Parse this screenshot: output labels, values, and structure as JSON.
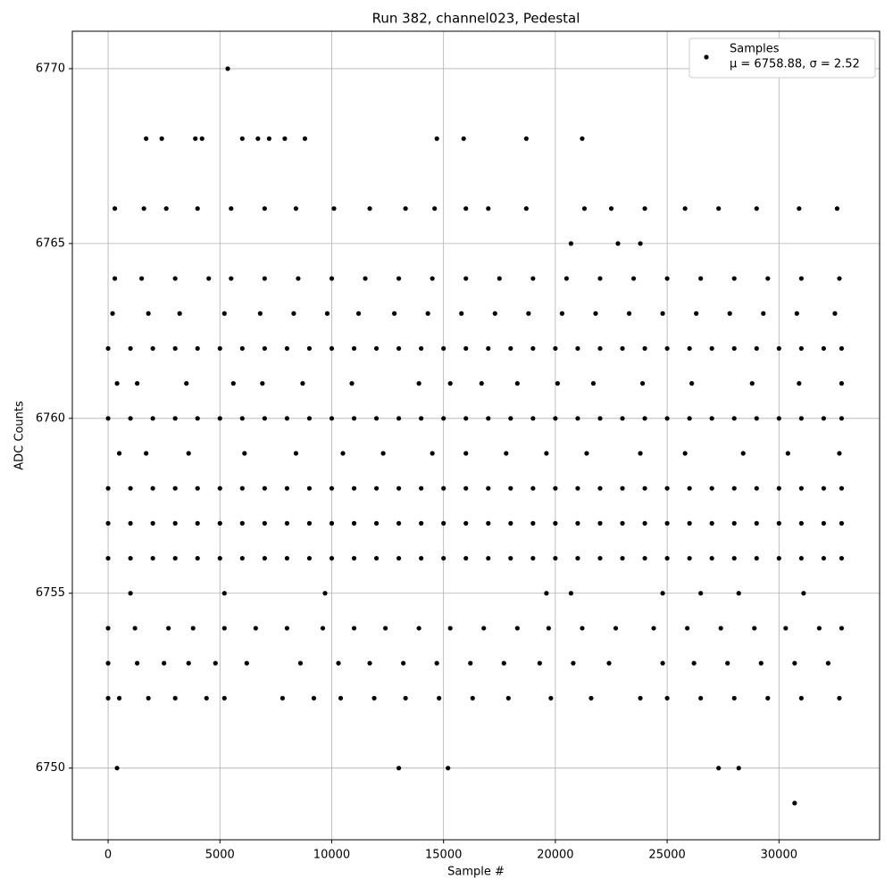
{
  "chart_data": {
    "type": "scatter",
    "title": "Run 382, channel023, Pedestal",
    "xlabel": "Sample #",
    "ylabel": "ADC Counts",
    "xlim": [
      -1600,
      34500
    ],
    "ylim": [
      6747.95,
      6771.07
    ],
    "xticks": [
      0,
      5000,
      10000,
      15000,
      20000,
      25000,
      30000
    ],
    "yticks": [
      6750,
      6755,
      6760,
      6765,
      6770
    ],
    "grid": true,
    "legend": "upper right",
    "legend_subtitle": "μ = 6758.88, σ = 2.52",
    "series": [
      {
        "name": "Samples",
        "color": "#000000",
        "x": [
          0,
          1000,
          2000,
          3000,
          4000,
          5000,
          6000,
          7000,
          8000,
          9000,
          10000,
          11000,
          12000,
          13000,
          14000,
          15000,
          16000,
          17000,
          18000,
          19000,
          20000,
          21000,
          22000,
          23000,
          24000,
          25000,
          26000,
          27000,
          28000,
          29000,
          30000,
          31000,
          32000,
          32800
        ],
        "values": [
          6760,
          6760,
          6760,
          6760,
          6760,
          6760,
          6760,
          6760,
          6760,
          6760,
          6760,
          6760,
          6760,
          6760,
          6760,
          6760,
          6760,
          6760,
          6760,
          6760,
          6760,
          6760,
          6760,
          6760,
          6760,
          6760,
          6760,
          6760,
          6760,
          6760,
          6760,
          6760,
          6760,
          6760
        ]
      },
      {
        "color": "#000000",
        "x": [
          0,
          1000,
          2000,
          3000,
          4000,
          5000,
          6000,
          7000,
          8000,
          9000,
          10000,
          11000,
          12000,
          13000,
          14000,
          15000,
          16000,
          17000,
          18000,
          19000,
          20000,
          21000,
          22000,
          23000,
          24000,
          25000,
          26000,
          27000,
          28000,
          29000,
          30000,
          31000,
          32000,
          32800
        ],
        "values": [
          6756,
          6756,
          6756,
          6756,
          6756,
          6756,
          6756,
          6756,
          6756,
          6756,
          6756,
          6756,
          6756,
          6756,
          6756,
          6756,
          6756,
          6756,
          6756,
          6756,
          6756,
          6756,
          6756,
          6756,
          6756,
          6756,
          6756,
          6756,
          6756,
          6756,
          6756,
          6756,
          6756,
          6756
        ]
      },
      {
        "color": "#000000",
        "x": [
          0,
          1000,
          2000,
          3000,
          4000,
          5000,
          6000,
          7000,
          8000,
          9000,
          10000,
          11000,
          12000,
          13000,
          14000,
          15000,
          16000,
          17000,
          18000,
          19000,
          20000,
          21000,
          22000,
          23000,
          24000,
          25000,
          26000,
          27000,
          28000,
          29000,
          30000,
          31000,
          32000,
          32800
        ],
        "values": [
          6757,
          6757,
          6757,
          6757,
          6757,
          6757,
          6757,
          6757,
          6757,
          6757,
          6757,
          6757,
          6757,
          6757,
          6757,
          6757,
          6757,
          6757,
          6757,
          6757,
          6757,
          6757,
          6757,
          6757,
          6757,
          6757,
          6757,
          6757,
          6757,
          6757,
          6757,
          6757,
          6757,
          6757
        ]
      },
      {
        "color": "#000000",
        "x": [
          0,
          1000,
          2000,
          3000,
          4000,
          5000,
          6000,
          7000,
          8000,
          9000,
          10000,
          11000,
          12000,
          13000,
          14000,
          15000,
          16000,
          17000,
          18000,
          19000,
          20000,
          21000,
          22000,
          23000,
          24000,
          25000,
          26000,
          27000,
          28000,
          29000,
          30000,
          31000,
          32000,
          32800
        ],
        "values": [
          6758,
          6758,
          6758,
          6758,
          6758,
          6758,
          6758,
          6758,
          6758,
          6758,
          6758,
          6758,
          6758,
          6758,
          6758,
          6758,
          6758,
          6758,
          6758,
          6758,
          6758,
          6758,
          6758,
          6758,
          6758,
          6758,
          6758,
          6758,
          6758,
          6758,
          6758,
          6758,
          6758,
          6758
        ]
      },
      {
        "color": "#000000",
        "x": [
          0,
          1000,
          2000,
          3000,
          4000,
          5000,
          6000,
          7000,
          8000,
          9000,
          10000,
          11000,
          12000,
          13000,
          14000,
          15000,
          16000,
          17000,
          18000,
          19000,
          20000,
          21000,
          22000,
          23000,
          24000,
          25000,
          26000,
          27000,
          28000,
          29000,
          30000,
          31000,
          32000,
          32800
        ],
        "values": [
          6762,
          6762,
          6762,
          6762,
          6762,
          6762,
          6762,
          6762,
          6762,
          6762,
          6762,
          6762,
          6762,
          6762,
          6762,
          6762,
          6762,
          6762,
          6762,
          6762,
          6762,
          6762,
          6762,
          6762,
          6762,
          6762,
          6762,
          6762,
          6762,
          6762,
          6762,
          6762,
          6762,
          6762
        ]
      },
      {
        "color": "#000000",
        "x": [
          300,
          1600,
          2600,
          4000,
          5500,
          7000,
          8400,
          10100,
          11700,
          13300,
          14600,
          16000,
          17000,
          18700,
          21300,
          22500,
          24000,
          25800,
          27300,
          29000,
          30900,
          32600
        ],
        "values": [
          6766,
          6766,
          6766,
          6766,
          6766,
          6766,
          6766,
          6766,
          6766,
          6766,
          6766,
          6766,
          6766,
          6766,
          6766,
          6766,
          6766,
          6766,
          6766,
          6766,
          6766,
          6766
        ]
      },
      {
        "color": "#000000",
        "x": [
          300,
          1500,
          3000,
          4500,
          5500,
          7000,
          8500,
          10000,
          11500,
          13000,
          14500,
          16000,
          17500,
          19000,
          20500,
          22000,
          23500,
          25000,
          26500,
          28000,
          29500,
          31000,
          32700
        ],
        "values": [
          6764,
          6764,
          6764,
          6764,
          6764,
          6764,
          6764,
          6764,
          6764,
          6764,
          6764,
          6764,
          6764,
          6764,
          6764,
          6764,
          6764,
          6764,
          6764,
          6764,
          6764,
          6764,
          6764
        ]
      },
      {
        "color": "#000000",
        "x": [
          200,
          1800,
          3200,
          5200,
          6800,
          8300,
          9800,
          11200,
          12800,
          14300,
          15800,
          17300,
          18800,
          20300,
          21800,
          23300,
          24800,
          26300,
          27800,
          29300,
          30800,
          32500
        ],
        "values": [
          6763,
          6763,
          6763,
          6763,
          6763,
          6763,
          6763,
          6763,
          6763,
          6763,
          6763,
          6763,
          6763,
          6763,
          6763,
          6763,
          6763,
          6763,
          6763,
          6763,
          6763,
          6763
        ]
      },
      {
        "color": "#000000",
        "x": [
          400,
          1300,
          3500,
          5600,
          6900,
          8700,
          10900,
          13900,
          15300,
          16700,
          18300,
          20100,
          21700,
          23900,
          26100,
          28800,
          30900,
          32800
        ],
        "values": [
          6761,
          6761,
          6761,
          6761,
          6761,
          6761,
          6761,
          6761,
          6761,
          6761,
          6761,
          6761,
          6761,
          6761,
          6761,
          6761,
          6761,
          6761
        ]
      },
      {
        "color": "#000000",
        "x": [
          500,
          1700,
          3600,
          6100,
          8400,
          10500,
          12300,
          14500,
          16000,
          17800,
          19600,
          21400,
          23800,
          25800,
          28400,
          30400,
          32700
        ],
        "values": [
          6759,
          6759,
          6759,
          6759,
          6759,
          6759,
          6759,
          6759,
          6759,
          6759,
          6759,
          6759,
          6759,
          6759,
          6759,
          6759,
          6759
        ]
      },
      {
        "color": "#000000",
        "x": [
          0,
          1200,
          2700,
          3800,
          5200,
          6600,
          8000,
          9600,
          11000,
          12400,
          13900,
          15300,
          16800,
          18300,
          19700,
          21200,
          22700,
          24400,
          25900,
          27400,
          28900,
          30300,
          31800,
          32800
        ],
        "values": [
          6754,
          6754,
          6754,
          6754,
          6754,
          6754,
          6754,
          6754,
          6754,
          6754,
          6754,
          6754,
          6754,
          6754,
          6754,
          6754,
          6754,
          6754,
          6754,
          6754,
          6754,
          6754,
          6754,
          6754
        ]
      },
      {
        "color": "#000000",
        "x": [
          0,
          1300,
          2500,
          3600,
          4800,
          6200,
          8600,
          10300,
          11700,
          13200,
          14700,
          16200,
          17700,
          19300,
          20800,
          22400,
          24800,
          26200,
          27700,
          29200,
          30700,
          32200
        ],
        "values": [
          6753,
          6753,
          6753,
          6753,
          6753,
          6753,
          6753,
          6753,
          6753,
          6753,
          6753,
          6753,
          6753,
          6753,
          6753,
          6753,
          6753,
          6753,
          6753,
          6753,
          6753,
          6753
        ]
      },
      {
        "color": "#000000",
        "x": [
          0,
          500,
          1800,
          3000,
          4400,
          5200,
          7800,
          9200,
          10400,
          11900,
          13300,
          14800,
          16300,
          17900,
          19800,
          21600,
          23800,
          25000,
          26500,
          28000,
          29500,
          31000,
          32700
        ],
        "values": [
          6752,
          6752,
          6752,
          6752,
          6752,
          6752,
          6752,
          6752,
          6752,
          6752,
          6752,
          6752,
          6752,
          6752,
          6752,
          6752,
          6752,
          6752,
          6752,
          6752,
          6752,
          6752,
          6752
        ]
      },
      {
        "color": "#000000",
        "x": [
          5350,
          1700,
          2400,
          3900,
          4200,
          6000,
          6700,
          7200,
          7900,
          8800,
          14700,
          15900,
          18700,
          21200,
          20700,
          22800,
          23800,
          1000,
          5200,
          9700,
          19600,
          20700,
          24800,
          26500,
          28200,
          31100,
          400,
          13000,
          15200,
          27300,
          28200,
          30700
        ],
        "values": [
          6770,
          6768,
          6768,
          6768,
          6768,
          6768,
          6768,
          6768,
          6768,
          6768,
          6768,
          6768,
          6768,
          6768,
          6765,
          6765,
          6765,
          6755,
          6755,
          6755,
          6755,
          6755,
          6755,
          6755,
          6755,
          6755,
          6750,
          6750,
          6750,
          6750,
          6750,
          6749
        ]
      }
    ]
  }
}
